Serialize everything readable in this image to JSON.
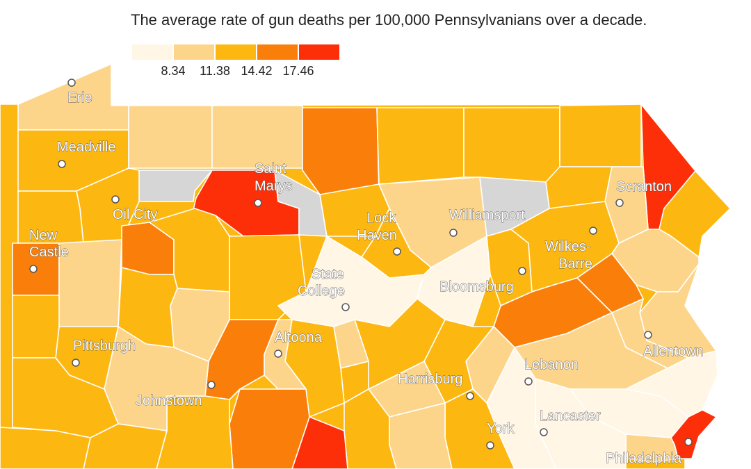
{
  "title": "The average rate of gun deaths per 100,000 Pennsylvanians over a decade.",
  "legend": {
    "bins": [
      {
        "color": "#fff6e6"
      },
      {
        "color": "#fdd58a"
      },
      {
        "color": "#fdb711"
      },
      {
        "color": "#f97f0a"
      },
      {
        "color": "#fd2f08"
      }
    ],
    "labels": [
      "8.34",
      "11.38",
      "14.42",
      "17.46"
    ]
  },
  "no_data_color": "#d6d6d6",
  "cities": [
    {
      "id": "erie",
      "lines": [
        "Erie"
      ]
    },
    {
      "id": "meadville",
      "lines": [
        "Meadville"
      ]
    },
    {
      "id": "oil-city",
      "lines": [
        "Oil City"
      ]
    },
    {
      "id": "new-castle",
      "lines": [
        "New",
        "Castle"
      ]
    },
    {
      "id": "saint-marys",
      "lines": [
        "Saint",
        "Marys"
      ]
    },
    {
      "id": "lock-haven",
      "lines": [
        "Lock",
        "Haven"
      ]
    },
    {
      "id": "williamsport",
      "lines": [
        "Williamsport"
      ]
    },
    {
      "id": "scranton",
      "lines": [
        "Scranton"
      ]
    },
    {
      "id": "wilkes-barre",
      "lines": [
        "Wilkes-",
        "Barre"
      ]
    },
    {
      "id": "state-college",
      "lines": [
        "State",
        "College"
      ]
    },
    {
      "id": "bloomsburg",
      "lines": [
        "Bloomsburg"
      ]
    },
    {
      "id": "pittsburgh",
      "lines": [
        "Pittsburgh"
      ]
    },
    {
      "id": "altoona",
      "lines": [
        "Altoona"
      ]
    },
    {
      "id": "johnstown",
      "lines": [
        "Johnstown"
      ]
    },
    {
      "id": "harrisburg",
      "lines": [
        "Harrisburg"
      ]
    },
    {
      "id": "lebanon",
      "lines": [
        "Lebanon"
      ]
    },
    {
      "id": "allentown",
      "lines": [
        "Allentown"
      ]
    },
    {
      "id": "lancaster",
      "lines": [
        "Lancaster"
      ]
    },
    {
      "id": "york",
      "lines": [
        "York"
      ]
    },
    {
      "id": "philadelphia",
      "lines": [
        "Philadelphia"
      ]
    }
  ]
}
